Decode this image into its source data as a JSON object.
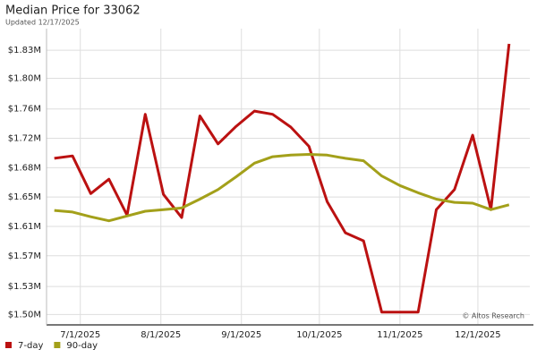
{
  "chart_data": {
    "type": "line",
    "title": "Median Price for 33062",
    "subtitle": "Updated 12/17/2025",
    "annotation": "© Altos Research",
    "x": [
      "2025-06-21",
      "2025-06-28",
      "2025-07-05",
      "2025-07-12",
      "2025-07-19",
      "2025-07-26",
      "2025-08-02",
      "2025-08-09",
      "2025-08-16",
      "2025-08-23",
      "2025-08-30",
      "2025-09-06",
      "2025-09-13",
      "2025-09-20",
      "2025-09-27",
      "2025-10-04",
      "2025-10-11",
      "2025-10-18",
      "2025-10-25",
      "2025-11-01",
      "2025-11-08",
      "2025-11-15",
      "2025-11-22",
      "2025-11-29",
      "2025-12-06",
      "2025-12-13"
    ],
    "series": [
      {
        "name": "7-day",
        "color": "#bb1111",
        "values": [
          1.695,
          1.698,
          1.651,
          1.669,
          1.624,
          1.75,
          1.65,
          1.621,
          1.748,
          1.713,
          1.735,
          1.754,
          1.75,
          1.734,
          1.71,
          1.641,
          1.602,
          1.592,
          1.503,
          1.503,
          1.503,
          1.631,
          1.656,
          1.724,
          1.631,
          1.838
        ]
      },
      {
        "name": "90-day",
        "color": "#a3a01a",
        "values": [
          1.63,
          1.628,
          1.622,
          1.617,
          1.623,
          1.629,
          1.631,
          1.633,
          1.644,
          1.656,
          1.672,
          1.689,
          1.697,
          1.699,
          1.7,
          1.699,
          1.695,
          1.692,
          1.673,
          1.661,
          1.652,
          1.644,
          1.64,
          1.639,
          1.631,
          1.637
        ]
      }
    ],
    "xlim": [
      "2025-06-18",
      "2025-12-21"
    ],
    "xticks": [
      {
        "value": "2025-07-01",
        "label": "7/1/2025"
      },
      {
        "value": "2025-08-01",
        "label": "8/1/2025"
      },
      {
        "value": "2025-09-01",
        "label": "9/1/2025"
      },
      {
        "value": "2025-10-01",
        "label": "10/1/2025"
      },
      {
        "value": "2025-11-01",
        "label": "11/1/2025"
      },
      {
        "value": "2025-12-01",
        "label": "12/1/2025"
      }
    ],
    "ylim": [
      1.487,
      1.857
    ],
    "yticks": [
      {
        "value": 1.5,
        "label": "$1.50M"
      },
      {
        "value": 1.5349,
        "label": "$1.53M"
      },
      {
        "value": 1.5733,
        "label": "$1.57M"
      },
      {
        "value": 1.61,
        "label": "$1.61M"
      },
      {
        "value": 1.6467,
        "label": "$1.65M"
      },
      {
        "value": 1.6833,
        "label": "$1.68M"
      },
      {
        "value": 1.72,
        "label": "$1.72M"
      },
      {
        "value": 1.7567,
        "label": "$1.76M"
      },
      {
        "value": 1.795,
        "label": "$1.80M"
      },
      {
        "value": 1.83,
        "label": "$1.83M"
      }
    ],
    "grid": true,
    "legend": "bottom-left"
  }
}
